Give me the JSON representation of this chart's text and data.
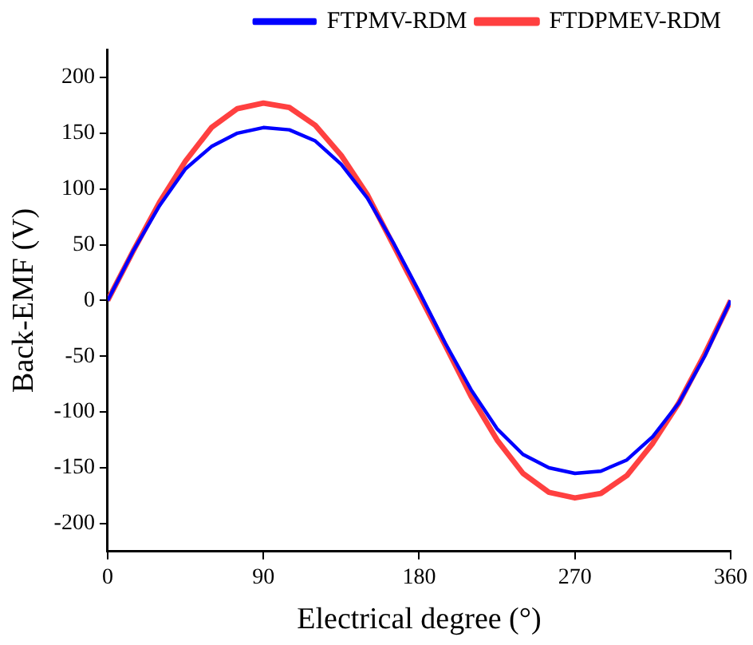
{
  "chart_data": {
    "type": "line",
    "xlabel": "Electrical degree (°)",
    "ylabel": "Back-EMF (V)",
    "x": [
      0,
      15,
      30,
      45,
      60,
      75,
      90,
      105,
      120,
      135,
      150,
      165,
      180,
      195,
      210,
      225,
      240,
      255,
      270,
      285,
      300,
      315,
      330,
      345,
      360
    ],
    "series": [
      {
        "name": "FTPMV-RDM",
        "color": "#0000ff",
        "values": [
          0,
          45,
          85,
          118,
          138,
          150,
          155,
          153,
          143,
          122,
          92,
          52,
          8,
          -38,
          -80,
          -115,
          -138,
          -150,
          -155,
          -153,
          -143,
          -122,
          -92,
          -50,
          0
        ]
      },
      {
        "name": "FTDPMEV-RDM",
        "color": "#ff4040",
        "values": [
          0,
          45,
          88,
          125,
          155,
          172,
          177,
          173,
          157,
          130,
          95,
          50,
          5,
          -40,
          -86,
          -125,
          -155,
          -172,
          -177,
          -173,
          -157,
          -128,
          -92,
          -48,
          0
        ]
      }
    ],
    "xlim": [
      0,
      360
    ],
    "xticks": [
      0,
      90,
      180,
      270,
      360
    ],
    "ylim": [
      -225,
      225
    ],
    "yticks": [
      -200,
      -150,
      -100,
      -50,
      0,
      50,
      100,
      150,
      200
    ],
    "grid": false,
    "legend": "top right",
    "marker": "none",
    "line_style": "solid"
  }
}
